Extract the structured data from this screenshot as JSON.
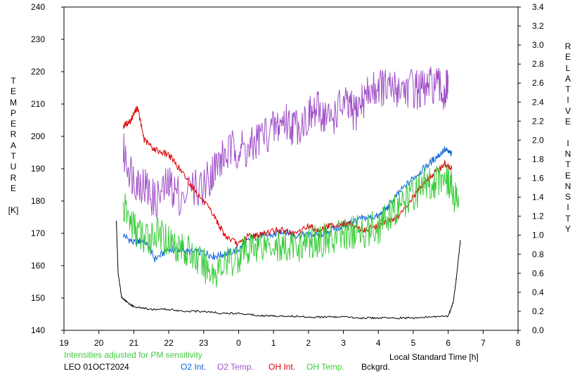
{
  "chart_data": {
    "type": "line",
    "title": "",
    "xlabel": "Local Standard Time [h]",
    "ylabel_left_letters": [
      "T",
      "E",
      "M",
      "P",
      "E",
      "R",
      "A",
      "T",
      "U",
      "R",
      "E",
      "",
      "[K]"
    ],
    "ylabel_right_letters": [
      "R",
      "E",
      "L",
      "A",
      "T",
      "I",
      "V",
      "E",
      "",
      "I",
      "N",
      "T",
      "E",
      "N",
      "S",
      "I",
      "T",
      "Y"
    ],
    "xlim": [
      19,
      32
    ],
    "ylim_left": [
      140,
      240
    ],
    "ylim_right": [
      0,
      3.4
    ],
    "x_tick_labels": [
      "19",
      "20",
      "21",
      "22",
      "23",
      "0",
      "1",
      "2",
      "3",
      "4",
      "5",
      "6",
      "7",
      "8"
    ],
    "y_left_ticks": [
      140,
      150,
      160,
      170,
      180,
      190,
      200,
      210,
      220,
      230,
      240
    ],
    "y_right_ticks": [
      "0.0",
      "0.2",
      "0.4",
      "0.6",
      "0.8",
      "1.0",
      "1.2",
      "1.4",
      "1.6",
      "1.8",
      "2.0",
      "2.2",
      "2.4",
      "2.6",
      "2.8",
      "3.0",
      "3.2",
      "3.4"
    ],
    "note": "Intensities adjusted for PM sensitivity",
    "station": "LEO 01OCT2024",
    "grid": false,
    "series": [
      {
        "name": "O2 Int.",
        "axis": "right",
        "color": "#0a64dc",
        "x": [
          20.7,
          21.0,
          21.3,
          21.6,
          22.0,
          22.3,
          22.6,
          23.0,
          23.3,
          23.6,
          24.0,
          24.3,
          24.6,
          25.0,
          25.3,
          25.6,
          26.0,
          26.3,
          26.6,
          27.0,
          27.3,
          27.6,
          28.0,
          28.3,
          28.6,
          29.0,
          29.3,
          29.6,
          29.9,
          30.1
        ],
        "y": [
          1.0,
          0.92,
          0.95,
          0.75,
          0.85,
          0.85,
          0.82,
          0.82,
          0.78,
          0.8,
          0.85,
          0.95,
          1.0,
          1.0,
          1.05,
          1.0,
          1.0,
          1.0,
          1.05,
          1.1,
          1.15,
          1.18,
          1.2,
          1.3,
          1.45,
          1.6,
          1.7,
          1.8,
          1.9,
          1.85
        ]
      },
      {
        "name": "O2 Temp.",
        "axis": "left",
        "color": "#a050c8",
        "x": [
          20.7,
          21.0,
          21.3,
          21.6,
          22.0,
          22.3,
          23.0,
          23.3,
          23.6,
          24.0,
          24.3,
          24.6,
          25.0,
          25.3,
          25.6,
          26.0,
          26.3,
          26.6,
          27.0,
          27.3,
          27.6,
          28.0,
          28.3,
          28.6,
          29.0,
          29.3,
          29.6,
          29.9,
          30.0
        ],
        "y": [
          195,
          187,
          185,
          180,
          185,
          182,
          185,
          190,
          194,
          197,
          195,
          200,
          202,
          205,
          203,
          206,
          208,
          205,
          210,
          207,
          212,
          216,
          214,
          215,
          215,
          214,
          216,
          213,
          216
        ]
      },
      {
        "name": "OH Int.",
        "axis": "right",
        "color": "#dc0000",
        "x": [
          20.7,
          20.9,
          21.1,
          21.3,
          21.6,
          22.0,
          22.3,
          22.6,
          23.0,
          23.3,
          23.6,
          24.0,
          24.3,
          24.6,
          25.0,
          25.3,
          25.6,
          26.0,
          26.3,
          26.6,
          27.0,
          27.3,
          27.6,
          28.0,
          28.3,
          28.6,
          29.0,
          29.3,
          29.6,
          29.9,
          30.1
        ],
        "y": [
          2.15,
          2.2,
          2.35,
          2.0,
          1.9,
          1.85,
          1.7,
          1.55,
          1.35,
          1.2,
          1.0,
          0.9,
          1.0,
          1.0,
          1.05,
          1.05,
          1.0,
          1.1,
          1.05,
          1.1,
          1.12,
          1.1,
          1.05,
          1.1,
          1.15,
          1.2,
          1.4,
          1.55,
          1.65,
          1.75,
          1.7
        ]
      },
      {
        "name": "OH Temp.",
        "axis": "left",
        "color": "#3ccc3c",
        "x": [
          20.7,
          21.0,
          21.3,
          21.6,
          22.0,
          22.3,
          22.6,
          23.0,
          23.3,
          23.6,
          24.0,
          24.3,
          24.6,
          25.0,
          25.3,
          25.6,
          26.0,
          26.3,
          26.6,
          27.0,
          27.3,
          27.6,
          28.0,
          28.3,
          28.6,
          29.0,
          29.3,
          29.6,
          29.9,
          30.1,
          30.3
        ],
        "y": [
          178,
          172,
          168,
          170,
          168,
          166,
          164,
          160,
          158,
          160,
          163,
          165,
          167,
          167,
          165,
          166,
          167,
          168,
          168,
          170,
          170,
          171,
          172,
          175,
          178,
          182,
          185,
          186,
          188,
          184,
          178
        ]
      },
      {
        "name": "Bckgrd.",
        "axis": "right",
        "color": "#000000",
        "x": [
          20.5,
          20.55,
          20.65,
          20.8,
          21.0,
          21.5,
          22.0,
          22.5,
          23.0,
          23.5,
          24.0,
          24.5,
          25.0,
          25.5,
          26.0,
          26.5,
          27.0,
          27.5,
          28.0,
          28.5,
          29.0,
          29.5,
          30.0,
          30.15,
          30.25,
          30.35
        ],
        "y": [
          1.15,
          0.6,
          0.35,
          0.3,
          0.25,
          0.22,
          0.22,
          0.2,
          0.2,
          0.18,
          0.18,
          0.16,
          0.15,
          0.15,
          0.14,
          0.14,
          0.14,
          0.13,
          0.13,
          0.13,
          0.13,
          0.14,
          0.15,
          0.3,
          0.6,
          0.95
        ]
      }
    ]
  }
}
